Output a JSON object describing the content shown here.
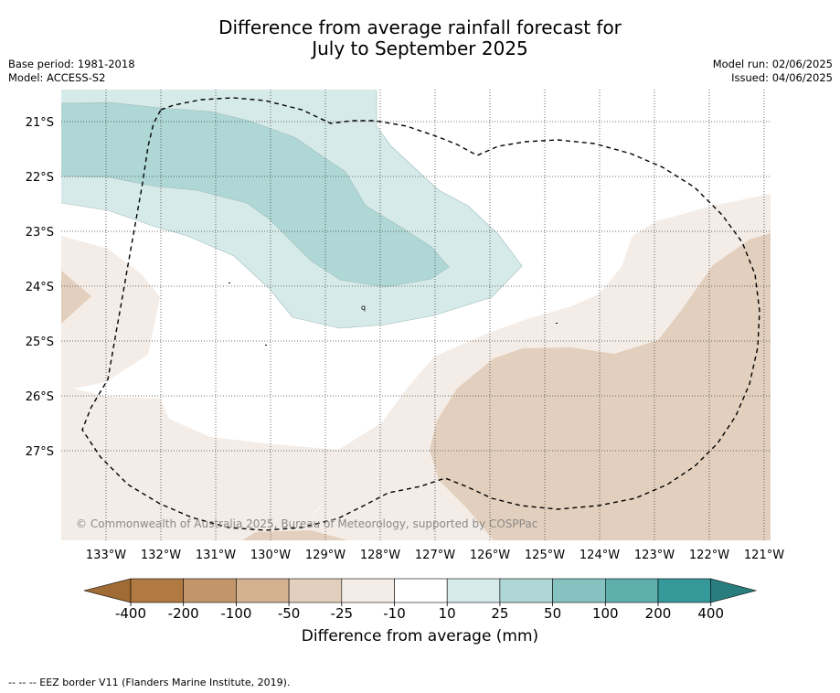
{
  "header": {
    "title_line1": "Difference from average rainfall forecast for",
    "title_line2": "July to September 2025",
    "base_period": "Base period: 1981-2018",
    "model": "Model: ACCESS-S2",
    "model_run": "Model run: 02/06/2025",
    "issued": "Issued: 04/06/2025"
  },
  "map": {
    "lat_labels": [
      "21°S",
      "22°S",
      "23°S",
      "24°S",
      "25°S",
      "26°S",
      "27°S"
    ],
    "lon_labels": [
      "133°W",
      "132°W",
      "131°W",
      "130°W",
      "129°W",
      "128°W",
      "127°W",
      "126°W",
      "125°W",
      "124°W",
      "123°W",
      "122°W",
      "121°W"
    ],
    "copyright": "© Commonwealth of Australia 2025, Bureau of Meteorology, supported by COSPPac",
    "marker": "q",
    "colors": {
      "wet_10_25": "#d6eae9",
      "wet_25_50": "#aed7d5",
      "dry_10_25": "#f4ece6",
      "dry_25_50": "#e3cfbd",
      "dry_50_100": "#d2b08e"
    }
  },
  "colorbar": {
    "ticks": [
      "-400",
      "-200",
      "-100",
      "-50",
      "-25",
      "-10",
      "10",
      "25",
      "50",
      "100",
      "200",
      "400"
    ],
    "colors": [
      "#a06b35",
      "#b07a42",
      "#c3966a",
      "#d4b291",
      "#e3cfbd",
      "#f4ece6",
      "#ffffff",
      "#d6eae9",
      "#aed7d5",
      "#86c2bf",
      "#5eaeab",
      "#35999a",
      "#2a7d7d"
    ],
    "label": "Difference from average (mm)"
  },
  "footnote": "--  --  -- EEZ border V11 (Flanders Marine Institute, 2019)."
}
